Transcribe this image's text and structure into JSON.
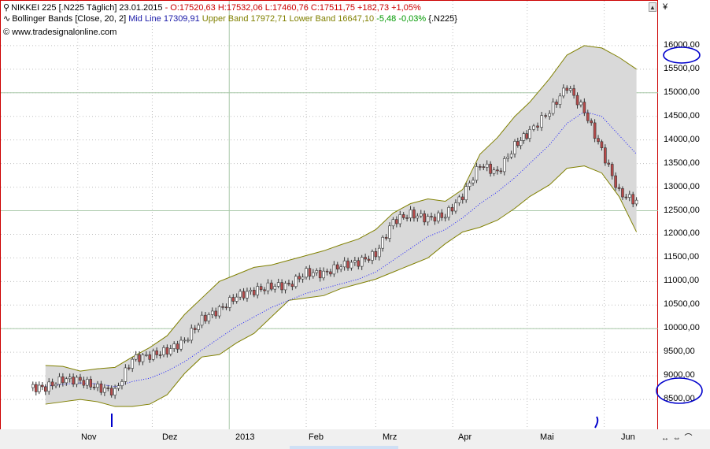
{
  "header": {
    "line1": {
      "instrument": "NIKKEI 225 [.N225  Täglich] 23.01.2015",
      "ohlc": "- O:17520,63 H:17532,06 L:17460,76 C:17511,75 +182,73 +1,05%"
    },
    "line2": {
      "indicator": "Bollinger Bands [Close, 20, 2]",
      "mid": "Mid Line 17309,91",
      "upper": "Upper Band 17972,71",
      "lower": "Lower Band 16647,10",
      "change": "-5,48 -0,03%",
      "symbol": "{.N225}"
    },
    "line3": "© www.tradesignalonline.com"
  },
  "axis": {
    "currency": "¥",
    "y_ticks": [
      "16000,00",
      "15500,00",
      "15000,00",
      "14500,00",
      "14000,00",
      "13500,00",
      "13000,00",
      "12500,00",
      "12000,00",
      "11500,00",
      "11000,00",
      "10500,00",
      "10000,00",
      "9500,00",
      "9000,00",
      "8500,00"
    ],
    "x_ticks": [
      "Nov",
      "Dez",
      "2013",
      "Feb",
      "Mrz",
      "Apr",
      "Mai",
      "Jun"
    ],
    "nav_controls": "↔ ⇔ ⌒"
  },
  "colors": {
    "frame": "#cc0000",
    "band_fill": "#d9d9d9",
    "band_line": "#808000",
    "mid_line": "#1e1eff",
    "candle_up": "#ffffff",
    "candle_down": "#b84a4a",
    "candle_outline": "#333333",
    "annotation": "#0000cc",
    "grid": "#bfbfbf"
  },
  "chart_data": {
    "type": "candlestick",
    "indicator": "Bollinger Bands [Close, 20, 2]",
    "ylim": [
      7850,
      16950
    ],
    "x_range_months": [
      "Okt 2012",
      "Jun 2013"
    ],
    "grid": true,
    "weekly": {
      "note_units": "approx weekly closes",
      "dates": [
        "2012-10-19",
        "2012-10-26",
        "2012-11-02",
        "2012-11-09",
        "2012-11-16",
        "2012-11-23",
        "2012-11-30",
        "2012-12-07",
        "2012-12-14",
        "2012-12-21",
        "2012-12-28",
        "2013-01-04",
        "2013-01-11",
        "2013-01-18",
        "2013-01-25",
        "2013-02-01",
        "2013-02-08",
        "2013-02-15",
        "2013-02-22",
        "2013-03-01",
        "2013-03-08",
        "2013-03-15",
        "2013-03-22",
        "2013-03-29",
        "2013-04-05",
        "2013-04-12",
        "2013-04-19",
        "2013-04-26",
        "2013-05-02",
        "2013-05-10",
        "2013-05-17",
        "2013-05-24",
        "2013-05-31",
        "2013-06-07",
        "2013-06-14"
      ],
      "close": [
        8750,
        8930,
        8900,
        8750,
        8660,
        9360,
        9430,
        9530,
        9740,
        10200,
        10400,
        10690,
        10800,
        10900,
        10920,
        11190,
        11160,
        11340,
        11410,
        11580,
        12280,
        12430,
        12330,
        12400,
        12820,
        13480,
        13300,
        13880,
        14180,
        14610,
        15140,
        14610,
        13780,
        12880,
        12690
      ],
      "upper": [
        9220,
        9200,
        9100,
        9150,
        9180,
        9400,
        9600,
        9850,
        10300,
        10650,
        11000,
        11150,
        11300,
        11350,
        11450,
        11550,
        11650,
        11780,
        11900,
        12100,
        12450,
        12650,
        12750,
        12700,
        12950,
        13700,
        14050,
        14500,
        14800,
        15300,
        15800,
        16000,
        15950,
        15750,
        15500
      ],
      "middle": [
        8780,
        8820,
        8850,
        8830,
        8770,
        8880,
        8950,
        9100,
        9300,
        9550,
        9800,
        10050,
        10250,
        10450,
        10600,
        10750,
        10850,
        10950,
        11050,
        11200,
        11450,
        11700,
        11950,
        12100,
        12350,
        12650,
        12900,
        13200,
        13500,
        13900,
        14350,
        14600,
        14500,
        14100,
        13700
      ],
      "lower": [
        8400,
        8450,
        8500,
        8450,
        8350,
        8350,
        8400,
        8600,
        9050,
        9400,
        9450,
        9700,
        9900,
        10250,
        10600,
        10650,
        10700,
        10850,
        10950,
        11050,
        11200,
        11350,
        11500,
        11800,
        12050,
        12150,
        12300,
        12550,
        12800,
        13050,
        13400,
        13450,
        13300,
        12800,
        12050
      ]
    }
  }
}
